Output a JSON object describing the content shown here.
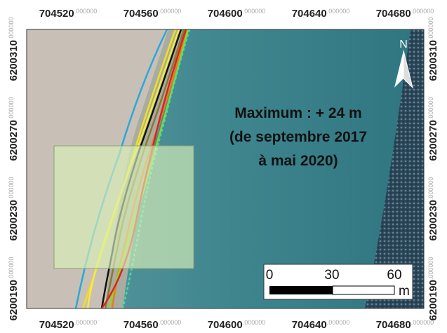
{
  "map": {
    "x_labels": [
      "704520",
      "704560",
      "704600",
      "704640",
      "704680"
    ],
    "y_labels": [
      "6200310",
      "6200270",
      "6200230",
      "6200190"
    ],
    "decimals": ".000000",
    "north": "N",
    "annotation": [
      "Maximum : + 24 m",
      "(de septembre 2017",
      "à mai 2020)"
    ],
    "scale": {
      "labels": [
        "0",
        "30",
        "60"
      ],
      "unit": "m"
    }
  }
}
